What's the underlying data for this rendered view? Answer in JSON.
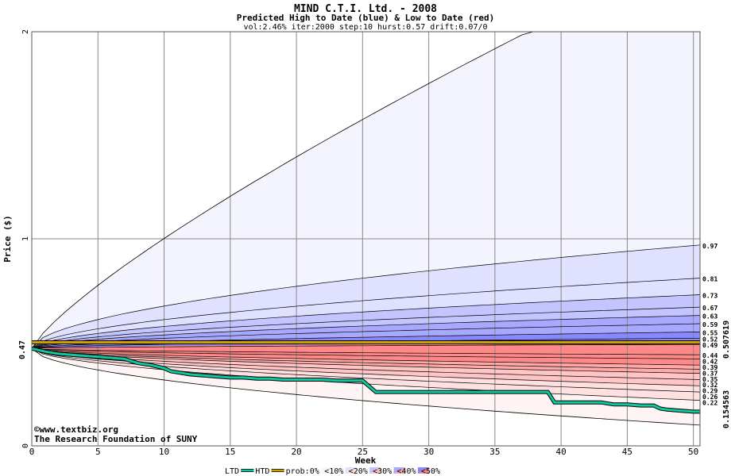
{
  "chart_data": {
    "type": "area",
    "title": "MIND C.T.I. Ltd. - 2008",
    "subtitle": "Predicted High to Date (blue) &  Low to Date (red)",
    "params": "vol:2.46% iter:2000 step:10 hurst:0.57 drift:0.07/0",
    "xlabel": "Week",
    "ylabel": "Price ($)",
    "xlim": [
      0,
      50.5
    ],
    "ylim": [
      0,
      2
    ],
    "x_ticks": [
      "0",
      "5",
      "10",
      "15",
      "20",
      "25",
      "30",
      "35",
      "40",
      "45",
      "50"
    ],
    "y_ticks": [
      "0",
      "1",
      "2"
    ],
    "current_price_label": "0.47",
    "current_price": 0.47,
    "right_labels": {
      "upper": "0.507619",
      "lower": "0.154563",
      "upper_value": 0.507619,
      "lower_value": 0.154563,
      "upper_color": "#a07800",
      "lower_color": "#10a080"
    },
    "high_quantiles": [
      {
        "label": "0.97",
        "value": 0.97
      },
      {
        "label": "0.81",
        "value": 0.81
      },
      {
        "label": "0.73",
        "value": 0.73
      },
      {
        "label": "0.67",
        "value": 0.67
      },
      {
        "label": "0.63",
        "value": 0.63
      },
      {
        "label": "0.59",
        "value": 0.59
      },
      {
        "label": "0.55",
        "value": 0.55
      },
      {
        "label": "0.52",
        "value": 0.52
      },
      {
        "label": "0.49",
        "value": 0.49
      }
    ],
    "low_quantiles": [
      {
        "label": "0.44",
        "value": 0.44
      },
      {
        "label": "0.42",
        "value": 0.42
      },
      {
        "label": "0.39",
        "value": 0.39
      },
      {
        "label": "0.37",
        "value": 0.37
      },
      {
        "label": "0.35",
        "value": 0.35
      },
      {
        "label": "0.32",
        "value": 0.32
      },
      {
        "label": "0.29",
        "value": 0.29
      },
      {
        "label": "0.26",
        "value": 0.26
      },
      {
        "label": "0.22",
        "value": 0.22
      }
    ],
    "max_path_end": 2.0,
    "max_path_reach_week": 37.5,
    "min_path_end": 0.1,
    "ltd_series": {
      "name": "LTD",
      "color": "#10c8a0",
      "x": [
        0,
        1,
        2,
        3,
        4,
        5,
        6,
        7,
        7.5,
        8,
        9,
        10,
        10.5,
        11,
        12,
        13,
        14,
        15,
        16,
        17,
        18,
        19,
        20,
        21,
        22,
        23,
        24,
        25,
        26,
        27,
        28,
        29,
        30,
        31,
        32,
        33,
        34,
        35,
        36,
        37,
        38,
        39,
        39.5,
        40,
        41,
        42,
        43,
        44,
        45,
        46,
        47,
        47.5,
        48,
        49,
        50,
        50.5
      ],
      "y": [
        0.47,
        0.455,
        0.445,
        0.44,
        0.435,
        0.43,
        0.425,
        0.42,
        0.41,
        0.4,
        0.39,
        0.375,
        0.36,
        0.355,
        0.345,
        0.34,
        0.335,
        0.33,
        0.33,
        0.325,
        0.325,
        0.32,
        0.32,
        0.32,
        0.32,
        0.315,
        0.315,
        0.315,
        0.26,
        0.26,
        0.26,
        0.26,
        0.26,
        0.26,
        0.26,
        0.26,
        0.26,
        0.26,
        0.26,
        0.26,
        0.26,
        0.26,
        0.21,
        0.21,
        0.21,
        0.21,
        0.21,
        0.2,
        0.2,
        0.195,
        0.195,
        0.18,
        0.175,
        0.17,
        0.165,
        0.165
      ]
    },
    "htd_series": {
      "name": "HTD",
      "color": "#d4a000",
      "value": 0.5
    },
    "legend": {
      "position": "bottom",
      "items": [
        "LTD",
        "HTD",
        "prob:0%",
        "<10%",
        "<20%",
        "<30%",
        "<40%",
        "<50%"
      ],
      "blue_colors": [
        "#f4f4ff",
        "#e0e0ff",
        "#c4c4ff",
        "#a8a8ff",
        "#8888ff"
      ],
      "red_colors": [
        "#fff4f4",
        "#ffe0e0",
        "#ffc4c4",
        "#ffa8a8",
        "#ff8888"
      ]
    },
    "grid": true
  },
  "credit": {
    "line1": "©www.textbiz.org",
    "line2": "The Research Foundation of SUNY"
  }
}
